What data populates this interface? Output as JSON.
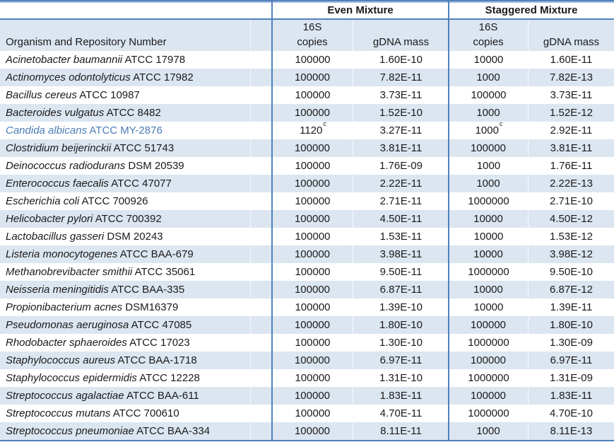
{
  "colors": {
    "accent_border": "#4F81BD",
    "accent_border_light": "#A3BFDE",
    "band_fill": "#DCE6F1",
    "highlight_text": "#4B7CB5"
  },
  "table": {
    "groups": [
      {
        "label": "Even Mixture",
        "s16": "16S",
        "copies": "copies",
        "gdna": "gDNA mass"
      },
      {
        "label": "Staggered Mixture",
        "s16": "16S",
        "copies": "copies",
        "gdna": "gDNA mass"
      }
    ],
    "organism_header": "Organism and Repository Number",
    "rows": [
      {
        "name": "Acinetobacter baumannii",
        "repo": "ATCC 17978",
        "even_copies": "100000",
        "even_copies_sup": "",
        "even_gdna": "1.60E-10",
        "stag_copies": "10000",
        "stag_copies_sup": "",
        "stag_gdna": "1.60E-11",
        "highlight": false
      },
      {
        "name": "Actinomyces odontolyticus",
        "repo": "ATCC 17982",
        "even_copies": "100000",
        "even_copies_sup": "",
        "even_gdna": "7.82E-11",
        "stag_copies": "1000",
        "stag_copies_sup": "",
        "stag_gdna": "7.82E-13",
        "highlight": false
      },
      {
        "name": "Bacillus cereus",
        "repo": "ATCC 10987",
        "even_copies": "100000",
        "even_copies_sup": "",
        "even_gdna": "3.73E-11",
        "stag_copies": "100000",
        "stag_copies_sup": "",
        "stag_gdna": "3.73E-11",
        "highlight": false
      },
      {
        "name": "Bacteroides vulgatus",
        "repo": "ATCC 8482",
        "even_copies": "100000",
        "even_copies_sup": "",
        "even_gdna": "1.52E-10",
        "stag_copies": "1000",
        "stag_copies_sup": "",
        "stag_gdna": "1.52E-12",
        "highlight": false
      },
      {
        "name": "Candida albicans",
        "repo": "ATCC MY-2876",
        "even_copies": "1120",
        "even_copies_sup": "c",
        "even_gdna": "3.27E-11",
        "stag_copies": "1000",
        "stag_copies_sup": "c",
        "stag_gdna": "2.92E-11",
        "highlight": true
      },
      {
        "name": "Clostridium beijerinckii",
        "repo": "ATCC 51743",
        "even_copies": "100000",
        "even_copies_sup": "",
        "even_gdna": "3.81E-11",
        "stag_copies": "100000",
        "stag_copies_sup": "",
        "stag_gdna": "3.81E-11",
        "highlight": false
      },
      {
        "name": "Deinococcus radiodurans",
        "repo": "DSM 20539",
        "even_copies": "100000",
        "even_copies_sup": "",
        "even_gdna": "1.76E-09",
        "stag_copies": "1000",
        "stag_copies_sup": "",
        "stag_gdna": "1.76E-11",
        "highlight": false
      },
      {
        "name": "Enterococcus faecalis",
        "repo": "ATCC 47077",
        "even_copies": "100000",
        "even_copies_sup": "",
        "even_gdna": "2.22E-11",
        "stag_copies": "1000",
        "stag_copies_sup": "",
        "stag_gdna": "2.22E-13",
        "highlight": false
      },
      {
        "name": "Escherichia coli",
        "repo": "ATCC 700926",
        "even_copies": "100000",
        "even_copies_sup": "",
        "even_gdna": "2.71E-11",
        "stag_copies": "1000000",
        "stag_copies_sup": "",
        "stag_gdna": "2.71E-10",
        "highlight": false
      },
      {
        "name": "Helicobacter pylori",
        "repo": "ATCC 700392",
        "even_copies": "100000",
        "even_copies_sup": "",
        "even_gdna": "4.50E-11",
        "stag_copies": "10000",
        "stag_copies_sup": "",
        "stag_gdna": "4.50E-12",
        "highlight": false
      },
      {
        "name": "Lactobacillus gasseri",
        "repo": "DSM 20243",
        "even_copies": "100000",
        "even_copies_sup": "",
        "even_gdna": "1.53E-11",
        "stag_copies": "10000",
        "stag_copies_sup": "",
        "stag_gdna": "1.53E-12",
        "highlight": false
      },
      {
        "name": "Listeria monocytogenes",
        "repo": "ATCC BAA-679",
        "even_copies": "100000",
        "even_copies_sup": "",
        "even_gdna": "3.98E-11",
        "stag_copies": "10000",
        "stag_copies_sup": "",
        "stag_gdna": "3.98E-12",
        "highlight": false
      },
      {
        "name": "Methanobrevibacter smithii",
        "repo": "ATCC 35061",
        "even_copies": "100000",
        "even_copies_sup": "",
        "even_gdna": "9.50E-11",
        "stag_copies": "1000000",
        "stag_copies_sup": "",
        "stag_gdna": "9.50E-10",
        "highlight": false
      },
      {
        "name": "Neisseria meningitidis",
        "repo": "ATCC BAA-335",
        "even_copies": "100000",
        "even_copies_sup": "",
        "even_gdna": "6.87E-11",
        "stag_copies": "10000",
        "stag_copies_sup": "",
        "stag_gdna": "6.87E-12",
        "highlight": false
      },
      {
        "name": "Propionibacterium acnes",
        "repo": "DSM16379",
        "even_copies": "100000",
        "even_copies_sup": "",
        "even_gdna": "1.39E-10",
        "stag_copies": "10000",
        "stag_copies_sup": "",
        "stag_gdna": "1.39E-11",
        "highlight": false
      },
      {
        "name": "Pseudomonas aeruginosa",
        "repo": "ATCC 47085",
        "even_copies": "100000",
        "even_copies_sup": "",
        "even_gdna": "1.80E-10",
        "stag_copies": "100000",
        "stag_copies_sup": "",
        "stag_gdna": "1.80E-10",
        "highlight": false
      },
      {
        "name": "Rhodobacter sphaeroides",
        "repo": "ATCC 17023",
        "even_copies": "100000",
        "even_copies_sup": "",
        "even_gdna": "1.30E-10",
        "stag_copies": "1000000",
        "stag_copies_sup": "",
        "stag_gdna": "1.30E-09",
        "highlight": false
      },
      {
        "name": "Staphylococcus aureus",
        "repo": "ATCC BAA-1718",
        "even_copies": "100000",
        "even_copies_sup": "",
        "even_gdna": "6.97E-11",
        "stag_copies": "100000",
        "stag_copies_sup": "",
        "stag_gdna": "6.97E-11",
        "highlight": false
      },
      {
        "name": "Staphylococcus epidermidis",
        "repo": "ATCC 12228",
        "even_copies": "100000",
        "even_copies_sup": "",
        "even_gdna": "1.31E-10",
        "stag_copies": "1000000",
        "stag_copies_sup": "",
        "stag_gdna": "1.31E-09",
        "highlight": false
      },
      {
        "name": "Streptococcus agalactiae",
        "repo": "ATCC BAA-611",
        "even_copies": "100000",
        "even_copies_sup": "",
        "even_gdna": "1.83E-11",
        "stag_copies": "100000",
        "stag_copies_sup": "",
        "stag_gdna": "1.83E-11",
        "highlight": false
      },
      {
        "name": "Streptococcus mutans",
        "repo": "ATCC 700610",
        "even_copies": "100000",
        "even_copies_sup": "",
        "even_gdna": "4.70E-11",
        "stag_copies": "1000000",
        "stag_copies_sup": "",
        "stag_gdna": "4.70E-10",
        "highlight": false
      },
      {
        "name": "Streptococcus pneumoniae",
        "repo": "ATCC BAA-334",
        "even_copies": "100000",
        "even_copies_sup": "",
        "even_gdna": "8.11E-11",
        "stag_copies": "1000",
        "stag_copies_sup": "",
        "stag_gdna": "8.11E-13",
        "highlight": false
      }
    ]
  }
}
